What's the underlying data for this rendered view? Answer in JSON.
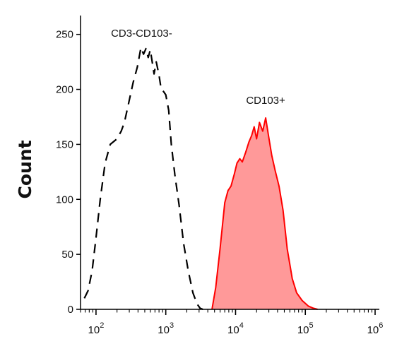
{
  "chart_data": {
    "type": "area",
    "title": "",
    "xlabel": "",
    "ylabel": "Count",
    "x_scale": "log",
    "xlim": [
      60,
      1000000
    ],
    "ylim": [
      0,
      262
    ],
    "x_ticks": [
      {
        "value": 100,
        "base": "10",
        "exp": "2"
      },
      {
        "value": 1000,
        "base": "10",
        "exp": "3"
      },
      {
        "value": 10000,
        "base": "10",
        "exp": "4"
      },
      {
        "value": 100000,
        "base": "10",
        "exp": "5"
      },
      {
        "value": 1000000,
        "base": "10",
        "exp": "6"
      }
    ],
    "y_ticks": [
      "0",
      "50",
      "100",
      "150",
      "200",
      "250"
    ],
    "grid": false,
    "legend": "none",
    "series": [
      {
        "name": "CD3-CD103-",
        "style": "dashed",
        "color": "#000000",
        "x": [
          68,
          77,
          88,
          100,
          115,
          135,
          160,
          200,
          230,
          255,
          290,
          340,
          390,
          440,
          480,
          520,
          560,
          600,
          680,
          730,
          800,
          860,
          930,
          1000,
          1100,
          1200,
          1350,
          1550,
          1800,
          2100,
          2450,
          2800,
          3100,
          3400
        ],
        "y": [
          10,
          17,
          35,
          65,
          100,
          133,
          150,
          155,
          162,
          170,
          186,
          206,
          220,
          238,
          232,
          237,
          229,
          236,
          214,
          225,
          213,
          200,
          198,
          195,
          181,
          150,
          122,
          95,
          60,
          35,
          15,
          5,
          1,
          0
        ]
      },
      {
        "name": "CD103+",
        "style": "filled",
        "color": "#ff0000",
        "fill": "#ff9999",
        "x": [
          4600,
          5200,
          6000,
          7000,
          7800,
          8600,
          9600,
          10500,
          11500,
          12500,
          14000,
          15500,
          17000,
          18500,
          20000,
          22000,
          24500,
          27000,
          30000,
          33000,
          37000,
          42000,
          48000,
          55000,
          65000,
          75000,
          90000,
          110000,
          130000,
          150000
        ],
        "y": [
          0,
          20,
          55,
          97,
          108,
          112,
          123,
          133,
          137,
          134,
          143,
          152,
          158,
          166,
          155,
          170,
          162,
          174,
          156,
          140,
          126,
          112,
          90,
          55,
          28,
          15,
          8,
          3,
          1,
          0
        ]
      }
    ],
    "annotations": [
      {
        "text": "CD3-CD103-",
        "x": 450,
        "y": 248
      },
      {
        "text": "CD103+",
        "x": 27000,
        "y": 187
      }
    ]
  }
}
